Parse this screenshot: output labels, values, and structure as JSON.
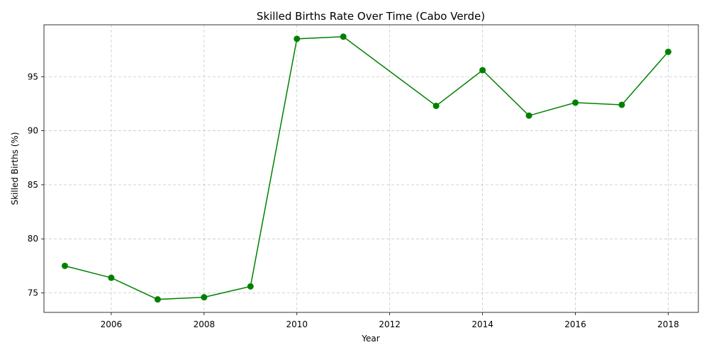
{
  "chart_data": {
    "type": "line",
    "title": "Skilled Births Rate Over Time (Cabo Verde)",
    "xlabel": "Year",
    "ylabel": "Skilled Births (%)",
    "xlim": [
      2004.55,
      2018.65
    ],
    "ylim": [
      73.2,
      99.8
    ],
    "xticks": [
      2006,
      2008,
      2010,
      2012,
      2014,
      2016,
      2018
    ],
    "yticks": [
      75,
      80,
      85,
      90,
      95
    ],
    "grid": true,
    "line_color": "#008000",
    "marker": "circle",
    "series": [
      {
        "x": [
          2005,
          2006,
          2007,
          2008,
          2009,
          2010,
          2011,
          2013,
          2014,
          2015,
          2016,
          2017,
          2018
        ],
        "y": [
          77.5,
          76.4,
          74.4,
          74.6,
          75.6,
          98.5,
          98.7,
          92.3,
          95.6,
          91.4,
          92.6,
          92.4,
          97.3
        ]
      }
    ]
  }
}
